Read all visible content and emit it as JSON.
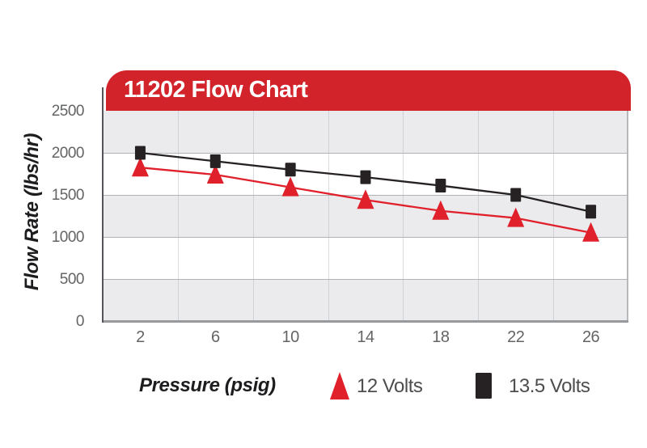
{
  "header": {
    "title": "11202 Flow Chart",
    "bg_color": "#d2232a",
    "text_color": "#ffffff"
  },
  "axes": {
    "y_title": "Flow Rate (lbs/hr)",
    "x_title": "Pressure (psig)",
    "y_tick_labels": [
      "2500",
      "2000",
      "1500",
      "1000",
      "500",
      "0"
    ],
    "x_tick_labels": [
      "2",
      "6",
      "10",
      "14",
      "18",
      "22",
      "26"
    ]
  },
  "legend": {
    "items": [
      {
        "label": "12 Volts",
        "marker": "triangle",
        "color": "#e0202a"
      },
      {
        "label": "13.5 Volts",
        "marker": "square",
        "color": "#262223"
      }
    ]
  },
  "colors": {
    "banner_red": "#d2232a",
    "series_red": "#e0202a",
    "series_black": "#262223",
    "band_gray": "#ebebee",
    "band_white": "#ffffff",
    "gridline_gray": "#b1b3b6",
    "tick_label_gray": "#636466"
  },
  "chart_data": {
    "type": "line",
    "title": "11202 Flow Chart",
    "xlabel": "Pressure (psig)",
    "ylabel": "Flow Rate (lbs/hr)",
    "x": [
      2,
      6,
      10,
      14,
      18,
      22,
      26
    ],
    "series": [
      {
        "name": "12 Volts",
        "marker": "triangle",
        "color": "#e0202a",
        "values": [
          1825,
          1740,
          1590,
          1440,
          1310,
          1225,
          1050
        ]
      },
      {
        "name": "13.5 Volts",
        "marker": "square",
        "color": "#262223",
        "values": [
          2000,
          1900,
          1800,
          1710,
          1610,
          1500,
          1300
        ]
      }
    ],
    "ylim": [
      0,
      2500
    ],
    "y_tick_step": 500,
    "x_tick_labels": [
      "2",
      "6",
      "10",
      "14",
      "18",
      "22",
      "26"
    ],
    "y_tick_labels": [
      "2500",
      "2000",
      "1500",
      "1000",
      "500",
      "0"
    ],
    "grid": "horizontal-bands",
    "band_colors": [
      "#ebebee",
      "#ffffff"
    ],
    "legend_position": "bottom"
  }
}
